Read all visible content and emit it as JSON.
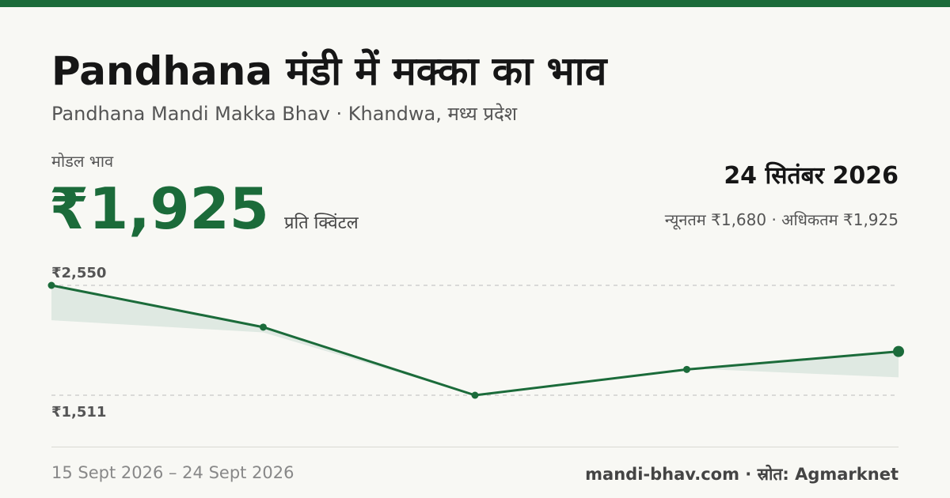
{
  "header": {
    "title": "Pandhana मंडी में मक्का का भाव",
    "subtitle": "Pandhana Mandi Makka Bhav · Khandwa, मध्य प्रदेश"
  },
  "price_block": {
    "label": "मोडल भाव",
    "price": "₹1,925",
    "unit": "प्रति क्विंटल"
  },
  "summary": {
    "date": "24 सितंबर 2026",
    "minmax": "न्यूनतम ₹1,680 · अधिकतम ₹1,925"
  },
  "footer": {
    "range": "15 Sept 2026 – 24 Sept 2026",
    "source": "mandi-bhav.com · स्रोत: Agmarknet"
  },
  "colors": {
    "accent": "#1b6b3a",
    "band": "#dfe9e2",
    "grid": "#bdbdbd"
  },
  "chart_data": {
    "type": "line",
    "ytick_labels": [
      "₹2,550",
      "₹1,511"
    ],
    "ylim": [
      1511,
      2550
    ],
    "grid": true,
    "modal": [
      2550,
      2155,
      1511,
      1755,
      1925
    ],
    "min_band": [
      2220,
      2105,
      1511,
      1765,
      1680
    ]
  }
}
